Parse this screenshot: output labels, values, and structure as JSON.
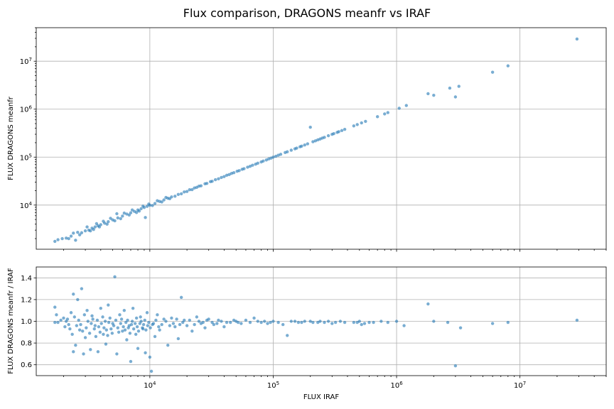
{
  "title": "Flux comparison, DRAGONS meanfr vs IRAF",
  "chart_data": [
    {
      "type": "scatter",
      "xscale": "log",
      "yscale": "log",
      "xlim": [
        1200.0,
        50000000.0
      ],
      "ylim": [
        1200.0,
        50000000.0
      ],
      "xlabel": "",
      "ylabel": "FLUX DRAGONS meanfr",
      "xticks": [
        {
          "v": 10000,
          "base": "10",
          "exp": "4"
        },
        {
          "v": 100000,
          "base": "10",
          "exp": "5"
        },
        {
          "v": 1000000,
          "base": "10",
          "exp": "6"
        },
        {
          "v": 10000000,
          "base": "10",
          "exp": "7"
        }
      ],
      "yticks": [
        {
          "v": 10000,
          "base": "10",
          "exp": "4"
        },
        {
          "v": 100000,
          "base": "10",
          "exp": "5"
        },
        {
          "v": 1000000,
          "base": "10",
          "exp": "6"
        },
        {
          "v": 10000000,
          "base": "10",
          "exp": "7"
        }
      ],
      "grid": true,
      "color": "#1f77b4",
      "points": [
        [
          1700,
          1750
        ],
        [
          1800,
          1900
        ],
        [
          1950,
          2000
        ],
        [
          2100,
          2050
        ],
        [
          2300,
          2250
        ],
        [
          2500,
          1850
        ],
        [
          2600,
          2700
        ],
        [
          2800,
          2650
        ],
        [
          3000,
          2900
        ],
        [
          3200,
          3000
        ],
        [
          3400,
          3300
        ],
        [
          3600,
          3500
        ],
        [
          3800,
          3700
        ],
        [
          4000,
          3900
        ],
        [
          4300,
          4200
        ],
        [
          4600,
          4500
        ],
        [
          5000,
          4900
        ],
        [
          5500,
          5400
        ],
        [
          6000,
          5900
        ],
        [
          6500,
          6500
        ],
        [
          7000,
          6900
        ],
        [
          7500,
          7400
        ],
        [
          8000,
          7900
        ],
        [
          8500,
          8400
        ],
        [
          9000,
          8900
        ],
        [
          9500,
          9400
        ],
        [
          10000,
          9900
        ],
        [
          11000,
          10800
        ],
        [
          12000,
          11900
        ],
        [
          13000,
          12800
        ],
        [
          14000,
          13900
        ],
        [
          15000,
          14800
        ],
        [
          17000,
          16700
        ],
        [
          19000,
          18800
        ],
        [
          21000,
          20900
        ],
        [
          23000,
          22800
        ],
        [
          25000,
          24800
        ],
        [
          28000,
          27800
        ],
        [
          31000,
          30800
        ],
        [
          34000,
          33800
        ],
        [
          38000,
          37700
        ],
        [
          42000,
          41800
        ],
        [
          46000,
          45800
        ],
        [
          51000,
          50800
        ],
        [
          56000,
          55800
        ],
        [
          62000,
          61700
        ],
        [
          68000,
          67800
        ],
        [
          75000,
          74700
        ],
        [
          83000,
          82700
        ],
        [
          92000,
          91700
        ],
        [
          100000,
          99800
        ],
        [
          110000,
          109500
        ],
        [
          125000,
          124500
        ],
        [
          140000,
          139500
        ],
        [
          155000,
          154500
        ],
        [
          170000,
          169500
        ],
        [
          190000,
          189500
        ],
        [
          210000,
          209500
        ],
        [
          200000,
          420000
        ],
        [
          230000,
          229500
        ],
        [
          250000,
          249500
        ],
        [
          280000,
          279500
        ],
        [
          310000,
          309500
        ],
        [
          340000,
          339500
        ],
        [
          380000,
          379500
        ],
        [
          450000,
          448000
        ],
        [
          480000,
          478000
        ],
        [
          520000,
          518000
        ],
        [
          560000,
          557000
        ],
        [
          700000,
          697000
        ],
        [
          800000,
          797000
        ],
        [
          850000,
          847000
        ],
        [
          1050000,
          1045000
        ],
        [
          1200000,
          1195000
        ],
        [
          1800000,
          2100000
        ],
        [
          2000000,
          1950000
        ],
        [
          2700000,
          2750000
        ],
        [
          3000000,
          1800000
        ],
        [
          3200000,
          3000000
        ],
        [
          6000000,
          5900000
        ],
        [
          8000000,
          8000000
        ],
        [
          29000000,
          29000000
        ],
        [
          2200,
          2000
        ],
        [
          2400,
          2600
        ],
        [
          2700,
          2400
        ],
        [
          3100,
          3500
        ],
        [
          3300,
          2900
        ],
        [
          3500,
          3100
        ],
        [
          3700,
          4100
        ],
        [
          3900,
          3500
        ],
        [
          4200,
          4600
        ],
        [
          4500,
          4000
        ],
        [
          4800,
          5300
        ],
        [
          5200,
          4700
        ],
        [
          5400,
          6600
        ],
        [
          5800,
          5200
        ],
        [
          6200,
          6800
        ],
        [
          6800,
          6200
        ],
        [
          7200,
          7900
        ],
        [
          7800,
          7000
        ],
        [
          8200,
          7500
        ],
        [
          8800,
          9500
        ],
        [
          9200,
          5500
        ],
        [
          9800,
          10500
        ],
        [
          10500,
          9800
        ],
        [
          11500,
          12300
        ],
        [
          12500,
          11600
        ],
        [
          13500,
          14400
        ],
        [
          14500,
          13600
        ],
        [
          16000,
          15300
        ],
        [
          18000,
          17200
        ],
        [
          20000,
          19200
        ],
        [
          22000,
          21000
        ],
        [
          24000,
          23400
        ],
        [
          26000,
          25200
        ],
        [
          29000,
          28300
        ],
        [
          32000,
          31300
        ],
        [
          36000,
          35300
        ],
        [
          40000,
          39300
        ],
        [
          44000,
          43300
        ],
        [
          48000,
          47400
        ],
        [
          53000,
          52300
        ],
        [
          58000,
          57400
        ],
        [
          65000,
          64300
        ],
        [
          72000,
          71300
        ],
        [
          80000,
          79300
        ],
        [
          88000,
          87300
        ],
        [
          96000,
          95300
        ],
        [
          105000,
          104200
        ],
        [
          115000,
          114300
        ],
        [
          130000,
          129200
        ],
        [
          150000,
          149100
        ],
        [
          165000,
          164200
        ],
        [
          180000,
          179000
        ],
        [
          220000,
          218800
        ],
        [
          240000,
          238700
        ],
        [
          260000,
          258600
        ],
        [
          300000,
          298400
        ],
        [
          330000,
          328200
        ],
        [
          360000,
          358000
        ]
      ]
    },
    {
      "type": "scatter",
      "xscale": "log",
      "yscale": "linear",
      "xlim": [
        1200.0,
        50000000.0
      ],
      "ylim": [
        0.5,
        1.5
      ],
      "xlabel": "FLUX IRAF",
      "ylabel": "FLUX DRAGONS meanfr / IRAF",
      "xticks": [
        {
          "v": 10000,
          "base": "10",
          "exp": "4"
        },
        {
          "v": 100000,
          "base": "10",
          "exp": "5"
        },
        {
          "v": 1000000,
          "base": "10",
          "exp": "6"
        },
        {
          "v": 10000000,
          "base": "10",
          "exp": "7"
        }
      ],
      "yticks": [
        {
          "v": 0.6,
          "label": "0.6"
        },
        {
          "v": 0.8,
          "label": "0.8"
        },
        {
          "v": 1.0,
          "label": "1.0"
        },
        {
          "v": 1.2,
          "label": "1.2"
        },
        {
          "v": 1.4,
          "label": "1.4"
        }
      ],
      "grid": true,
      "color": "#1f77b4",
      "points": [
        [
          1700,
          1.13
        ],
        [
          1700,
          0.99
        ],
        [
          1750,
          1.06
        ],
        [
          2000,
          1.03
        ],
        [
          2100,
          1.0
        ],
        [
          2200,
          0.97
        ],
        [
          2300,
          1.08
        ],
        [
          2400,
          1.25
        ],
        [
          2400,
          0.72
        ],
        [
          2500,
          0.78
        ],
        [
          2600,
          1.2
        ],
        [
          2700,
          0.92
        ],
        [
          2800,
          1.3
        ],
        [
          2900,
          0.7
        ],
        [
          3000,
          0.85
        ],
        [
          3100,
          1.1
        ],
        [
          3300,
          0.74
        ],
        [
          3400,
          1.05
        ],
        [
          3600,
          0.96
        ],
        [
          3800,
          0.72
        ],
        [
          4000,
          1.12
        ],
        [
          4200,
          0.88
        ],
        [
          4400,
          0.79
        ],
        [
          4600,
          1.15
        ],
        [
          5000,
          0.98
        ],
        [
          5200,
          1.41
        ],
        [
          5400,
          0.7
        ],
        [
          5700,
          1.06
        ],
        [
          6000,
          0.91
        ],
        [
          6200,
          1.1
        ],
        [
          6500,
          0.83
        ],
        [
          6800,
          0.96
        ],
        [
          7000,
          0.63
        ],
        [
          7300,
          1.12
        ],
        [
          7700,
          0.88
        ],
        [
          8000,
          0.75
        ],
        [
          8400,
          1.04
        ],
        [
          8800,
          0.93
        ],
        [
          9200,
          0.71
        ],
        [
          9500,
          1.08
        ],
        [
          10000,
          0.67
        ],
        [
          10300,
          0.54
        ],
        [
          10500,
          0.97
        ],
        [
          11000,
          0.86
        ],
        [
          11500,
          1.06
        ],
        [
          12000,
          0.92
        ],
        [
          13000,
          1.02
        ],
        [
          14000,
          0.78
        ],
        [
          15000,
          1.03
        ],
        [
          16000,
          0.95
        ],
        [
          17000,
          0.84
        ],
        [
          18000,
          1.22
        ],
        [
          19000,
          1.01
        ],
        [
          20000,
          0.96
        ],
        [
          22000,
          0.91
        ],
        [
          24000,
          1.04
        ],
        [
          26000,
          0.98
        ],
        [
          28000,
          0.94
        ],
        [
          30000,
          1.02
        ],
        [
          33000,
          0.97
        ],
        [
          36000,
          1.01
        ],
        [
          40000,
          0.95
        ],
        [
          45000,
          0.99
        ],
        [
          50000,
          1.0
        ],
        [
          55000,
          0.98
        ],
        [
          60000,
          1.01
        ],
        [
          70000,
          1.03
        ],
        [
          80000,
          0.99
        ],
        [
          90000,
          0.98
        ],
        [
          100000,
          1.0
        ],
        [
          110000,
          0.99
        ],
        [
          120000,
          0.97
        ],
        [
          130000,
          0.87
        ],
        [
          150000,
          1.0
        ],
        [
          170000,
          0.99
        ],
        [
          200000,
          1.0
        ],
        [
          230000,
          0.99
        ],
        [
          260000,
          0.99
        ],
        [
          300000,
          0.98
        ],
        [
          350000,
          1.0
        ],
        [
          450000,
          0.99
        ],
        [
          500000,
          1.0
        ],
        [
          550000,
          0.98
        ],
        [
          600000,
          0.99
        ],
        [
          750000,
          1.0
        ],
        [
          850000,
          0.99
        ],
        [
          1000000,
          1.0
        ],
        [
          1150000,
          0.96
        ],
        [
          1800000,
          1.16
        ],
        [
          2000000,
          1.0
        ],
        [
          2600000,
          0.99
        ],
        [
          3000000,
          0.59
        ],
        [
          3300000,
          0.94
        ],
        [
          6000000,
          0.98
        ],
        [
          8000000,
          0.99
        ],
        [
          29000000,
          1.01
        ],
        [
          1800,
          0.99
        ],
        [
          1900,
          1.01
        ],
        [
          2050,
          0.95
        ],
        [
          2150,
          1.02
        ],
        [
          2250,
          0.93
        ],
        [
          2350,
          0.88
        ],
        [
          2450,
          1.04
        ],
        [
          2550,
          0.96
        ],
        [
          2650,
          1.01
        ],
        [
          2750,
          0.97
        ],
        [
          2850,
          0.91
        ],
        [
          2950,
          1.06
        ],
        [
          3050,
          0.94
        ],
        [
          3150,
          1.0
        ],
        [
          3250,
          0.89
        ],
        [
          3350,
          0.98
        ],
        [
          3450,
          1.02
        ],
        [
          3550,
          0.93
        ],
        [
          3650,
          0.86
        ],
        [
          3750,
          1.01
        ],
        [
          3850,
          0.95
        ],
        [
          3950,
          0.9
        ],
        [
          4050,
          0.98
        ],
        [
          4150,
          1.04
        ],
        [
          4250,
          0.94
        ],
        [
          4350,
          1.0
        ],
        [
          4450,
          0.92
        ],
        [
          4550,
          0.87
        ],
        [
          4650,
          0.99
        ],
        [
          4750,
          1.03
        ],
        [
          4850,
          0.93
        ],
        [
          4950,
          0.89
        ],
        [
          5100,
          0.96
        ],
        [
          5300,
          1.01
        ],
        [
          5500,
          0.94
        ],
        [
          5600,
          0.9
        ],
        [
          5800,
          0.98
        ],
        [
          5900,
          1.02
        ],
        [
          6100,
          0.95
        ],
        [
          6300,
          0.92
        ],
        [
          6400,
          0.99
        ],
        [
          6600,
          1.01
        ],
        [
          6700,
          0.94
        ],
        [
          6900,
          0.89
        ],
        [
          7100,
          0.97
        ],
        [
          7200,
          1.0
        ],
        [
          7400,
          0.93
        ],
        [
          7600,
          0.98
        ],
        [
          7800,
          1.03
        ],
        [
          7900,
          0.95
        ],
        [
          8100,
          0.91
        ],
        [
          8300,
          0.98
        ],
        [
          8500,
          1.0
        ],
        [
          8700,
          0.94
        ],
        [
          8900,
          0.97
        ],
        [
          9100,
          1.01
        ],
        [
          9300,
          0.92
        ],
        [
          9600,
          0.96
        ],
        [
          9800,
          0.99
        ],
        [
          10100,
          0.94
        ],
        [
          10700,
          0.98
        ],
        [
          11200,
          1.01
        ],
        [
          11800,
          0.95
        ],
        [
          12500,
          0.97
        ],
        [
          13500,
          1.0
        ],
        [
          14500,
          0.96
        ],
        [
          15500,
          0.98
        ],
        [
          16500,
          1.02
        ],
        [
          17500,
          0.97
        ],
        [
          18500,
          0.99
        ],
        [
          21000,
          1.01
        ],
        [
          23000,
          0.97
        ],
        [
          25000,
          1.0
        ],
        [
          27000,
          0.99
        ],
        [
          29000,
          1.01
        ],
        [
          32000,
          0.99
        ],
        [
          35000,
          0.98
        ],
        [
          38000,
          1.0
        ],
        [
          42000,
          0.99
        ],
        [
          48000,
          1.01
        ],
        [
          52000,
          0.99
        ],
        [
          65000,
          0.99
        ],
        [
          75000,
          1.0
        ],
        [
          85000,
          1.0
        ],
        [
          95000,
          0.99
        ],
        [
          140000,
          1.0
        ],
        [
          160000,
          0.99
        ],
        [
          180000,
          1.0
        ],
        [
          210000,
          0.99
        ],
        [
          240000,
          1.0
        ],
        [
          280000,
          1.0
        ],
        [
          320000,
          0.99
        ],
        [
          380000,
          0.99
        ],
        [
          480000,
          0.99
        ],
        [
          520000,
          0.97
        ],
        [
          650000,
          0.99
        ]
      ]
    }
  ]
}
